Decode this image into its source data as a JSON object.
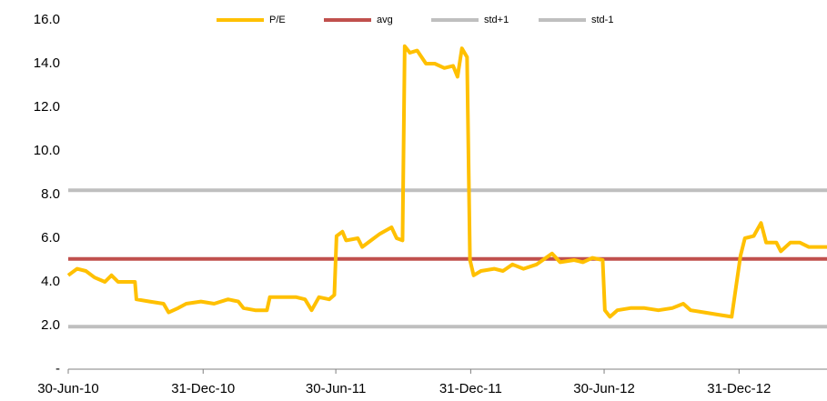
{
  "chart_data": {
    "type": "line",
    "legend": "top",
    "xlim": [
      "2010-06-30",
      "2013-04-30"
    ],
    "xticks": [
      {
        "value": "2010-06-30",
        "label": "30-Jun-10"
      },
      {
        "value": "2010-12-31",
        "label": "31-Dec-10"
      },
      {
        "value": "2011-06-30",
        "label": "30-Jun-11"
      },
      {
        "value": "2011-12-31",
        "label": "31-Dec-11"
      },
      {
        "value": "2012-06-30",
        "label": "30-Jun-12"
      },
      {
        "value": "2012-12-31",
        "label": "31-Dec-12"
      }
    ],
    "ylim": [
      0,
      16
    ],
    "yticks": [
      {
        "value": 0,
        "label": "-"
      },
      {
        "value": 2,
        "label": "2.0"
      },
      {
        "value": 4,
        "label": "4.0"
      },
      {
        "value": 6,
        "label": "6.0"
      },
      {
        "value": 8,
        "label": "8.0"
      },
      {
        "value": 10,
        "label": "10.0"
      },
      {
        "value": 12,
        "label": "12.0"
      },
      {
        "value": 14,
        "label": "14.0"
      },
      {
        "value": 16,
        "label": "16.0"
      }
    ],
    "x": [
      "2010-06-30",
      "2010-07-12",
      "2010-07-24",
      "2010-08-05",
      "2010-08-19",
      "2010-08-28",
      "2010-09-06",
      "2010-09-19",
      "2010-09-29",
      "2010-10-01",
      "2010-10-19",
      "2010-11-07",
      "2010-11-14",
      "2010-11-27",
      "2010-12-08",
      "2010-12-28",
      "2011-01-15",
      "2011-02-03",
      "2011-02-17",
      "2011-02-24",
      "2011-03-12",
      "2011-03-28",
      "2011-04-01",
      "2011-04-18",
      "2011-05-07",
      "2011-05-19",
      "2011-05-28",
      "2011-06-07",
      "2011-06-21",
      "2011-06-28",
      "2011-07-01",
      "2011-07-09",
      "2011-07-14",
      "2011-07-30",
      "2011-08-05",
      "2011-08-17",
      "2011-08-29",
      "2011-09-14",
      "2011-09-21",
      "2011-09-29",
      "2011-10-02",
      "2011-10-09",
      "2011-10-19",
      "2011-10-31",
      "2011-11-12",
      "2011-11-25",
      "2011-12-07",
      "2011-12-13",
      "2011-12-19",
      "2011-12-26",
      "2011-12-30",
      "2012-01-04",
      "2012-01-14",
      "2012-02-01",
      "2012-02-13",
      "2012-02-26",
      "2012-03-12",
      "2012-03-30",
      "2012-04-20",
      "2012-05-01",
      "2012-05-20",
      "2012-06-01",
      "2012-06-14",
      "2012-06-28",
      "2012-07-01",
      "2012-07-08",
      "2012-07-18",
      "2012-08-05",
      "2012-08-24",
      "2012-09-12",
      "2012-10-01",
      "2012-10-16",
      "2012-10-26",
      "2012-11-14",
      "2012-12-02",
      "2012-12-21",
      "2013-01-02",
      "2013-01-08",
      "2013-01-20",
      "2013-01-30",
      "2013-02-06",
      "2013-02-20",
      "2013-02-26",
      "2013-03-11",
      "2013-03-24",
      "2013-04-05",
      "2013-04-30"
    ],
    "series": [
      {
        "name": "P/E",
        "color": "#ffc000",
        "values": [
          4.3,
          4.6,
          4.5,
          4.2,
          4.0,
          4.3,
          4.0,
          4.0,
          4.0,
          3.2,
          3.1,
          3.0,
          2.6,
          2.8,
          3.0,
          3.1,
          3.0,
          3.2,
          3.1,
          2.8,
          2.7,
          2.7,
          3.3,
          3.3,
          3.3,
          3.2,
          2.7,
          3.3,
          3.2,
          3.4,
          6.1,
          6.3,
          5.9,
          6.0,
          5.6,
          5.9,
          6.2,
          6.5,
          6.0,
          5.9,
          14.8,
          14.5,
          14.6,
          14.0,
          14.0,
          13.8,
          13.9,
          13.4,
          14.7,
          14.3,
          5.0,
          4.3,
          4.5,
          4.6,
          4.5,
          4.8,
          4.6,
          4.8,
          5.3,
          4.9,
          5.0,
          4.9,
          5.1,
          5.0,
          2.7,
          2.4,
          2.7,
          2.8,
          2.8,
          2.7,
          2.8,
          3.0,
          2.7,
          2.6,
          2.5,
          2.4,
          5.2,
          6.0,
          6.1,
          6.7,
          5.8,
          5.8,
          5.4,
          5.8,
          5.8,
          5.6,
          5.6
        ]
      },
      {
        "name": "avg",
        "color": "#c0504d",
        "value": 5.05
      },
      {
        "name": "std+1",
        "color": "#bfbfbf",
        "value": 8.2
      },
      {
        "name": "std-1",
        "color": "#bfbfbf",
        "value": 1.95
      }
    ]
  }
}
